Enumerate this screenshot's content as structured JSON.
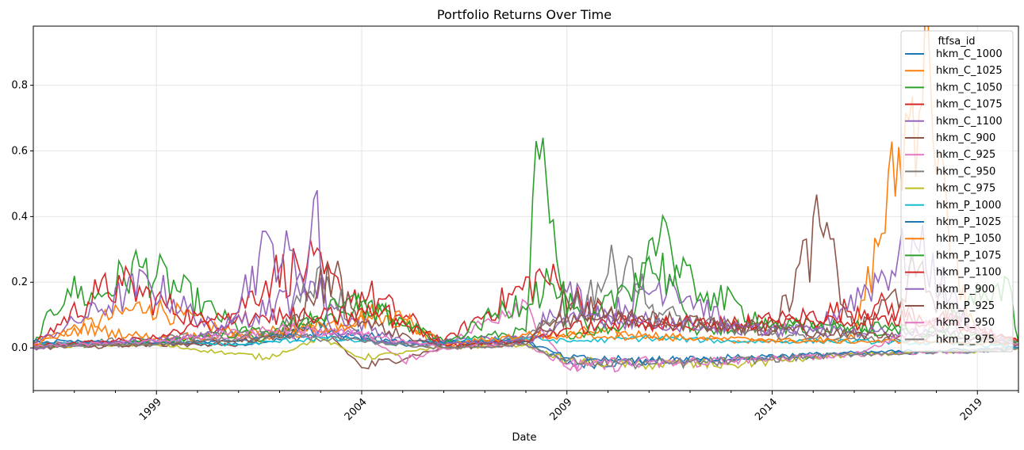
{
  "chart_data": {
    "type": "line",
    "title": "Portfolio Returns Over Time",
    "xlabel": "Date",
    "ylabel": "",
    "xlim": [
      1996.0,
      2020.0
    ],
    "ylim": [
      -0.13,
      0.98
    ],
    "x_ticks": [
      1999,
      2004,
      2009,
      2014,
      2019
    ],
    "x_tick_labels": [
      "1999",
      "2004",
      "2009",
      "2014",
      "2019"
    ],
    "y_ticks": [
      0.0,
      0.2,
      0.4,
      0.6,
      0.8
    ],
    "y_tick_labels": [
      "0.0",
      "0.2",
      "0.4",
      "0.6",
      "0.8"
    ],
    "grid": true,
    "legend": {
      "title": "ftfsa_id",
      "placement": "top-right"
    },
    "series": [
      {
        "name": "hkm_C_1000",
        "color": "#1f77b4",
        "points": [
          [
            1996,
            0.01
          ],
          [
            1998,
            0.015
          ],
          [
            2001,
            0.01
          ],
          [
            2003,
            0.04
          ],
          [
            2005,
            0.01
          ],
          [
            2008,
            0.02
          ],
          [
            2009,
            -0.05
          ],
          [
            2011,
            -0.04
          ],
          [
            2013,
            -0.035
          ],
          [
            2016,
            -0.02
          ],
          [
            2019,
            -0.01
          ],
          [
            2020,
            0.0
          ]
        ]
      },
      {
        "name": "hkm_C_1025",
        "color": "#ff7f0e",
        "points": [
          [
            1996,
            0.02
          ],
          [
            1998.8,
            0.13
          ],
          [
            2001.5,
            0.02
          ],
          [
            2004.5,
            0.11
          ],
          [
            2006,
            0.01
          ],
          [
            2008.5,
            0.03
          ],
          [
            2009.5,
            0.05
          ],
          [
            2011,
            0.04
          ],
          [
            2013,
            0.02
          ],
          [
            2016,
            0.03
          ],
          [
            2017.8,
            0.93
          ],
          [
            2018.3,
            0.3
          ],
          [
            2019,
            0.03
          ],
          [
            2020,
            0.02
          ]
        ]
      },
      {
        "name": "hkm_C_1050",
        "color": "#2ca02c",
        "points": [
          [
            1996,
            0.01
          ],
          [
            1996.8,
            0.18
          ],
          [
            1997.5,
            0.15
          ],
          [
            1998.6,
            0.25
          ],
          [
            2001.5,
            0.02
          ],
          [
            2004,
            0.13
          ],
          [
            2006,
            0.02
          ],
          [
            2008,
            0.05
          ],
          [
            2008.3,
            0.6
          ],
          [
            2009,
            0.04
          ],
          [
            2010.5,
            0.07
          ],
          [
            2011.3,
            0.42
          ],
          [
            2012,
            0.05
          ],
          [
            2013.5,
            0.07
          ],
          [
            2016,
            0.06
          ],
          [
            2018,
            0.05
          ],
          [
            2019.7,
            0.22
          ],
          [
            2020,
            0.02
          ]
        ]
      },
      {
        "name": "hkm_C_1075",
        "color": "#d62728",
        "points": [
          [
            1996,
            0.01
          ],
          [
            1997.6,
            0.17
          ],
          [
            1998.2,
            0.19
          ],
          [
            2000.5,
            0.06
          ],
          [
            2001.8,
            0.22
          ],
          [
            2002.7,
            0.25
          ],
          [
            2003.5,
            0.17
          ],
          [
            2004.2,
            0.16
          ],
          [
            2006,
            0.02
          ],
          [
            2008.4,
            0.22
          ],
          [
            2010,
            0.09
          ],
          [
            2012,
            0.06
          ],
          [
            2014.5,
            0.09
          ],
          [
            2016.5,
            0.13
          ],
          [
            2018,
            0.09
          ],
          [
            2020,
            0.02
          ]
        ]
      },
      {
        "name": "hkm_C_1100",
        "color": "#9467bd",
        "points": [
          [
            1996,
            0.01
          ],
          [
            1998.8,
            0.2
          ],
          [
            2000.5,
            0.05
          ],
          [
            2001.8,
            0.32
          ],
          [
            2002.5,
            0.23
          ],
          [
            2003.5,
            0.1
          ],
          [
            2005,
            0.02
          ],
          [
            2008,
            0.03
          ],
          [
            2009,
            0.17
          ],
          [
            2010,
            0.1
          ],
          [
            2011.5,
            0.21
          ],
          [
            2013,
            0.06
          ],
          [
            2015,
            0.05
          ],
          [
            2017.5,
            0.31
          ],
          [
            2019,
            0.04
          ],
          [
            2020,
            0.02
          ]
        ]
      },
      {
        "name": "hkm_C_900",
        "color": "#8c564b",
        "points": [
          [
            1996,
            0.0
          ],
          [
            2000,
            0.01
          ],
          [
            2001,
            0.01
          ],
          [
            2003,
            0.07
          ],
          [
            2004,
            -0.06
          ],
          [
            2006,
            0.0
          ],
          [
            2008,
            0.01
          ],
          [
            2009,
            0.15
          ],
          [
            2010,
            0.1
          ],
          [
            2012,
            0.08
          ],
          [
            2014,
            0.05
          ],
          [
            2015.2,
            0.38
          ],
          [
            2016,
            0.04
          ],
          [
            2017.5,
            0.22
          ],
          [
            2019,
            0.04
          ],
          [
            2020,
            0.01
          ]
        ]
      },
      {
        "name": "hkm_C_925",
        "color": "#e377c2",
        "points": [
          [
            1996,
            0.01
          ],
          [
            1999,
            0.02
          ],
          [
            2002,
            0.04
          ],
          [
            2004,
            0.05
          ],
          [
            2005,
            -0.04
          ],
          [
            2006,
            0.0
          ],
          [
            2007.9,
            0.15
          ],
          [
            2009,
            -0.06
          ],
          [
            2011,
            -0.05
          ],
          [
            2013,
            -0.04
          ],
          [
            2016,
            -0.02
          ],
          [
            2019,
            -0.01
          ],
          [
            2020,
            0.0
          ]
        ]
      },
      {
        "name": "hkm_C_950",
        "color": "#7f7f7f",
        "points": [
          [
            1996,
            0.01
          ],
          [
            1999,
            0.03
          ],
          [
            2002,
            0.05
          ],
          [
            2003,
            0.25
          ],
          [
            2004,
            0.03
          ],
          [
            2006,
            0.0
          ],
          [
            2008,
            0.03
          ],
          [
            2009,
            0.11
          ],
          [
            2010.5,
            0.28
          ],
          [
            2011,
            0.12
          ],
          [
            2012,
            0.08
          ],
          [
            2014,
            0.04
          ],
          [
            2016,
            0.03
          ],
          [
            2018,
            0.02
          ],
          [
            2020,
            0.01
          ]
        ]
      },
      {
        "name": "hkm_C_975",
        "color": "#bcbd22",
        "points": [
          [
            1996,
            0.005
          ],
          [
            1999,
            0.01
          ],
          [
            2001.7,
            -0.03
          ],
          [
            2003,
            0.03
          ],
          [
            2004,
            -0.03
          ],
          [
            2006,
            0.0
          ],
          [
            2008,
            0.01
          ],
          [
            2009,
            -0.04
          ],
          [
            2011,
            -0.05
          ],
          [
            2013,
            -0.05
          ],
          [
            2016,
            -0.02
          ],
          [
            2019,
            -0.01
          ],
          [
            2020,
            0.0
          ]
        ]
      },
      {
        "name": "hkm_P_1000",
        "color": "#17becf",
        "points": [
          [
            1996,
            0.01
          ],
          [
            1999,
            0.02
          ],
          [
            2001,
            0.01
          ],
          [
            2003,
            0.03
          ],
          [
            2005,
            0.01
          ],
          [
            2008,
            0.03
          ],
          [
            2009,
            0.02
          ],
          [
            2011,
            0.03
          ],
          [
            2013,
            0.02
          ],
          [
            2016,
            0.02
          ],
          [
            2019,
            0.01
          ],
          [
            2020,
            0.0
          ]
        ]
      },
      {
        "name": "hkm_P_1025",
        "color": "#1f77b4",
        "points": [
          [
            1996,
            0.02
          ],
          [
            1999,
            0.015
          ],
          [
            2001,
            0.02
          ],
          [
            2003,
            0.06
          ],
          [
            2005,
            0.02
          ],
          [
            2008,
            0.02
          ],
          [
            2009,
            -0.03
          ],
          [
            2011,
            -0.04
          ],
          [
            2013,
            -0.03
          ],
          [
            2016,
            -0.015
          ],
          [
            2019,
            -0.005
          ],
          [
            2020,
            0.0
          ]
        ]
      },
      {
        "name": "hkm_P_1050",
        "color": "#ff7f0e",
        "points": [
          [
            1996,
            0.01
          ],
          [
            1997.2,
            0.06
          ],
          [
            1999,
            0.03
          ],
          [
            2002,
            0.05
          ],
          [
            2005,
            0.09
          ],
          [
            2006,
            0.01
          ],
          [
            2008,
            0.04
          ],
          [
            2009.5,
            0.04
          ],
          [
            2012,
            0.03
          ],
          [
            2015,
            0.02
          ],
          [
            2017.5,
            0.02
          ],
          [
            2020,
            0.01
          ]
        ]
      },
      {
        "name": "hkm_P_1075",
        "color": "#2ca02c",
        "points": [
          [
            1996,
            0.005
          ],
          [
            1999,
            0.02
          ],
          [
            2002,
            0.06
          ],
          [
            2004,
            0.14
          ],
          [
            2006,
            0.01
          ],
          [
            2008.6,
            0.2
          ],
          [
            2009.5,
            0.06
          ],
          [
            2010.9,
            0.26
          ],
          [
            2012.4,
            0.17
          ],
          [
            2014,
            0.07
          ],
          [
            2017,
            0.06
          ],
          [
            2020,
            0.02
          ]
        ]
      },
      {
        "name": "hkm_P_1100",
        "color": "#d62728",
        "points": [
          [
            1996,
            0.005
          ],
          [
            1999,
            0.03
          ],
          [
            2001,
            0.1
          ],
          [
            2003,
            0.09
          ],
          [
            2004.5,
            0.11
          ],
          [
            2006,
            0.01
          ],
          [
            2008,
            0.02
          ],
          [
            2009,
            0.06
          ],
          [
            2011,
            0.08
          ],
          [
            2013,
            0.07
          ],
          [
            2015,
            0.08
          ],
          [
            2018,
            0.09
          ],
          [
            2020,
            0.02
          ]
        ]
      },
      {
        "name": "hkm_P_900",
        "color": "#9467bd",
        "points": [
          [
            1996,
            0.0
          ],
          [
            1998,
            0.02
          ],
          [
            2000,
            0.03
          ],
          [
            2002.5,
            0.16
          ],
          [
            2002.8,
            0.49
          ],
          [
            2003.2,
            0.05
          ],
          [
            2005,
            0.01
          ],
          [
            2008,
            0.02
          ],
          [
            2009.5,
            0.1
          ],
          [
            2011,
            0.08
          ],
          [
            2013,
            0.06
          ],
          [
            2015,
            0.05
          ],
          [
            2018,
            0.05
          ],
          [
            2020,
            0.01
          ]
        ]
      },
      {
        "name": "hkm_P_925",
        "color": "#8c564b",
        "points": [
          [
            1996,
            0.005
          ],
          [
            1999,
            0.01
          ],
          [
            2002,
            0.03
          ],
          [
            2003.3,
            0.23
          ],
          [
            2004,
            0.08
          ],
          [
            2006,
            0.0
          ],
          [
            2008,
            0.02
          ],
          [
            2009,
            0.1
          ],
          [
            2011,
            0.09
          ],
          [
            2013,
            0.07
          ],
          [
            2016,
            0.04
          ],
          [
            2019,
            0.03
          ],
          [
            2020,
            0.01
          ]
        ]
      },
      {
        "name": "hkm_P_950",
        "color": "#e377c2",
        "points": [
          [
            1996,
            0.005
          ],
          [
            1999,
            0.02
          ],
          [
            2002,
            0.06
          ],
          [
            2004,
            0.04
          ],
          [
            2006,
            0.0
          ],
          [
            2008,
            0.01
          ],
          [
            2009,
            -0.05
          ],
          [
            2011,
            -0.04
          ],
          [
            2013,
            -0.04
          ],
          [
            2016,
            -0.02
          ],
          [
            2018.3,
            0.09
          ],
          [
            2020,
            0.01
          ]
        ]
      },
      {
        "name": "hkm_P_975",
        "color": "#7f7f7f",
        "points": [
          [
            1996,
            0.005
          ],
          [
            1999,
            0.01
          ],
          [
            2002,
            0.04
          ],
          [
            2004,
            0.02
          ],
          [
            2006,
            0.0
          ],
          [
            2008,
            0.01
          ],
          [
            2009,
            -0.04
          ],
          [
            2011,
            -0.05
          ],
          [
            2013,
            -0.04
          ],
          [
            2016,
            -0.02
          ],
          [
            2019,
            -0.01
          ],
          [
            2020,
            0.0
          ]
        ]
      }
    ]
  }
}
